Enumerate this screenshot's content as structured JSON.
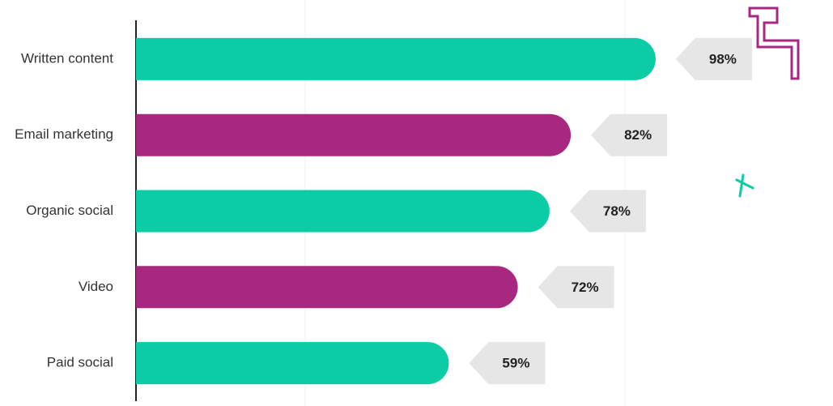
{
  "chart_data": {
    "type": "barh",
    "categories": [
      "Written content",
      "Email marketing",
      "Organic social",
      "Video",
      "Paid social"
    ],
    "values": [
      98,
      82,
      78,
      72,
      59
    ],
    "value_labels": [
      "98%",
      "82%",
      "78%",
      "72%",
      "59%"
    ],
    "colors": [
      "#0ccca6",
      "#a8287f",
      "#0ccca6",
      "#a8287f",
      "#0ccca6"
    ],
    "xlim": [
      0,
      100
    ]
  }
}
